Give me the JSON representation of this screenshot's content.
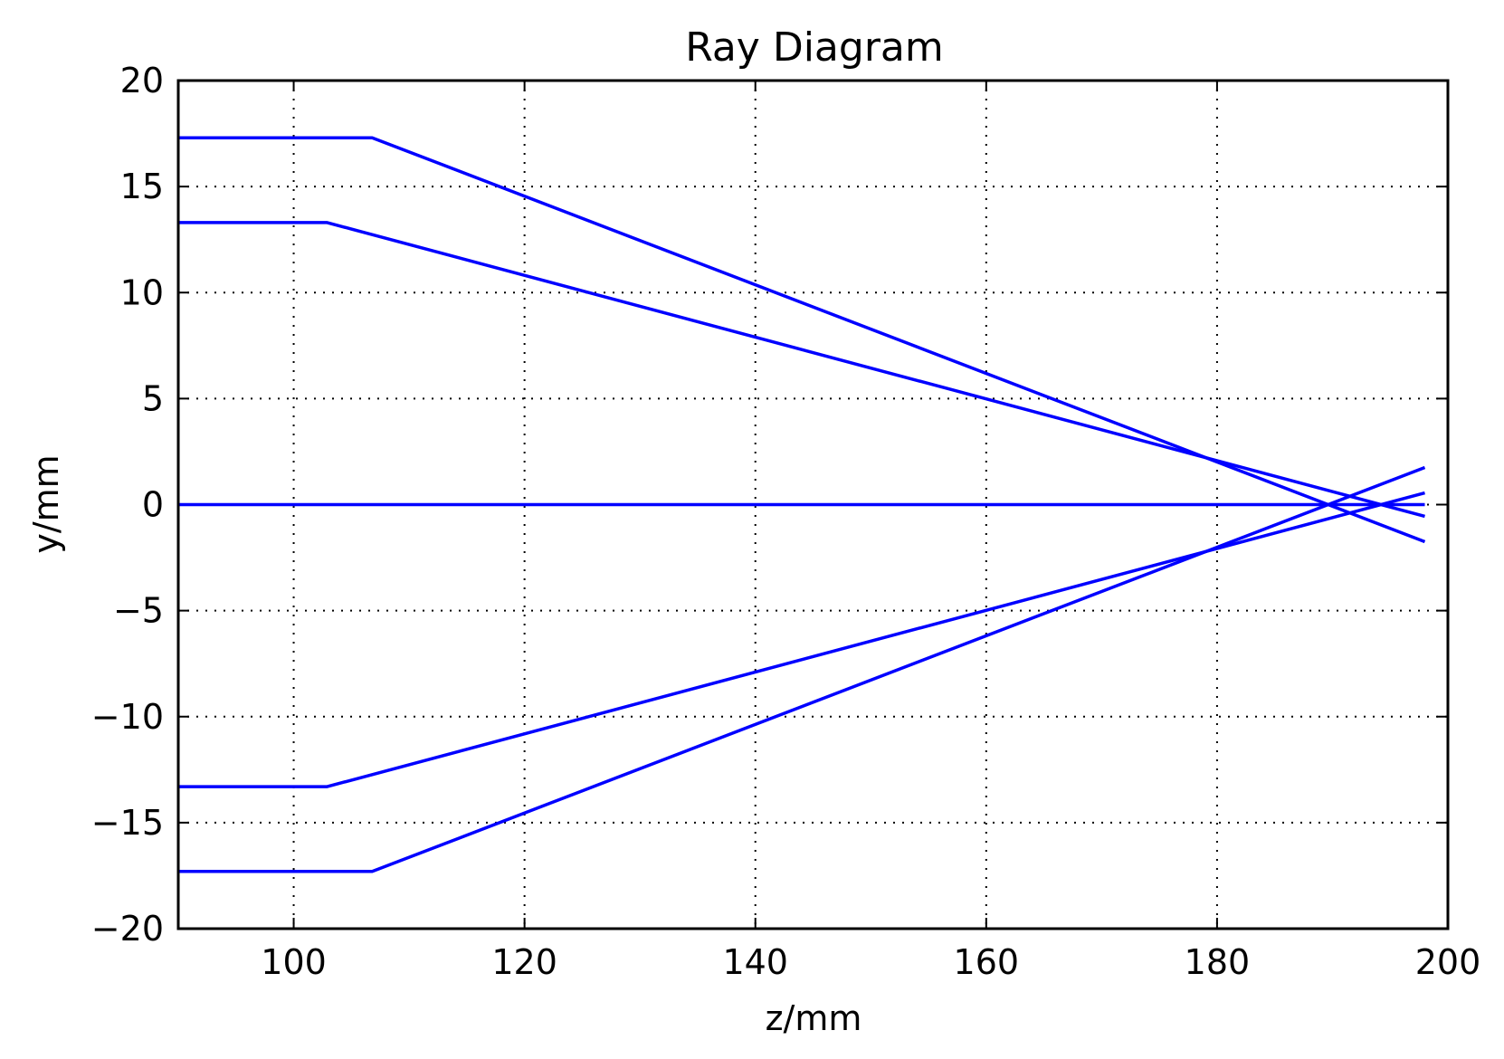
{
  "chart_data": {
    "type": "line",
    "title": "Ray Diagram",
    "xlabel": "z/mm",
    "ylabel": "y/mm",
    "xlim": [
      90,
      200
    ],
    "ylim": [
      -20,
      20
    ],
    "xticks": [
      100,
      120,
      140,
      160,
      180,
      200
    ],
    "xtick_labels": [
      "100",
      "120",
      "140",
      "160",
      "180",
      "200"
    ],
    "yticks": [
      -20,
      -15,
      -10,
      -5,
      0,
      5,
      10,
      15,
      20
    ],
    "ytick_labels": [
      "−20",
      "−15",
      "−10",
      "−5",
      "0",
      "5",
      "10",
      "15",
      "20"
    ],
    "grid": true,
    "line_color": "#0000ff",
    "grid_color": "#000000",
    "series": [
      {
        "x": [
          90,
          106.8,
          198
        ],
        "y": [
          17.3,
          17.3,
          -1.75
        ]
      },
      {
        "x": [
          90,
          102.9,
          198
        ],
        "y": [
          13.3,
          13.3,
          -0.55
        ]
      },
      {
        "x": [
          90,
          198
        ],
        "y": [
          0,
          0
        ]
      },
      {
        "x": [
          90,
          102.9,
          198
        ],
        "y": [
          -13.3,
          -13.3,
          0.55
        ]
      },
      {
        "x": [
          90,
          106.8,
          198
        ],
        "y": [
          -17.3,
          -17.3,
          1.75
        ]
      }
    ]
  }
}
